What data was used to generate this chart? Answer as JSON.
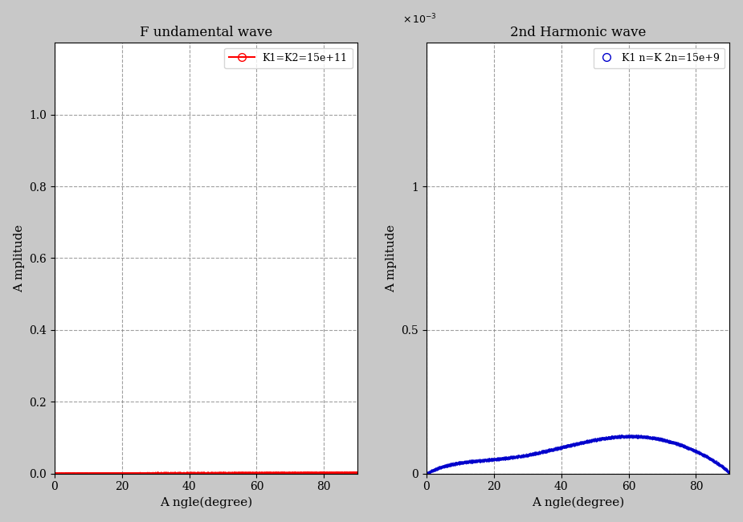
{
  "left_title": "F undamental wave",
  "right_title": "2nd Harmonic wave",
  "left_legend": "K1=K2=15e+11",
  "right_legend": "K1 n=K 2n=15e+9",
  "xlabel": "A ngle(degree)",
  "ylabel": "A mplitude",
  "left_ylim": [
    0,
    1.2
  ],
  "left_yticks": [
    0,
    0.2,
    0.4,
    0.6,
    0.8,
    1.0
  ],
  "right_ylim": [
    0,
    0.0015
  ],
  "right_yticks": [
    0,
    0.0005,
    0.001
  ],
  "xlim": [
    0,
    90
  ],
  "xticks": [
    0,
    20,
    40,
    60,
    80
  ],
  "left_color": "#ff0000",
  "right_color": "#0000cc",
  "bg_color": "#ffffff",
  "grid_color": "#888888",
  "fig_bg": "#c8c8c8",
  "title_fontsize": 12,
  "label_fontsize": 11,
  "tick_fontsize": 10
}
